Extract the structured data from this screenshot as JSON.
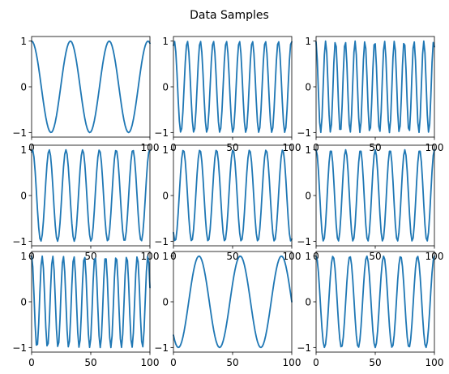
{
  "figure": {
    "title": "Data Samples",
    "line_color": "#1f77b4"
  },
  "chart_data": [
    {
      "type": "line",
      "samples": 100,
      "phase_at_0": 0.25,
      "cycles": 3.05,
      "amplitude": 1,
      "xlim": [
        0,
        100
      ],
      "ylim": [
        -1.1,
        1.1
      ],
      "xticks": [
        "0",
        "100"
      ],
      "yticks": [
        "-1",
        "0",
        "1"
      ],
      "grid": false,
      "legend": "none"
    },
    {
      "type": "line",
      "samples": 100,
      "phase_at_0": 0.18,
      "cycles": 9.1,
      "amplitude": 1,
      "xlim": [
        0,
        100
      ],
      "ylim": [
        -1.1,
        1.1
      ],
      "xticks": [
        "0",
        "50",
        "100"
      ],
      "yticks": [
        "-1",
        "0",
        "1"
      ],
      "grid": false,
      "legend": "none"
    },
    {
      "type": "line",
      "samples": 100,
      "phase_at_0": 0.28,
      "cycles": 12.05,
      "amplitude": 1,
      "xlim": [
        0,
        100
      ],
      "ylim": [
        -1.1,
        1.1
      ],
      "xticks": [
        "0",
        "50",
        "100"
      ],
      "yticks": [
        "-1",
        "0",
        "1"
      ],
      "grid": false,
      "legend": "none"
    },
    {
      "type": "line",
      "samples": 100,
      "phase_at_0": 0.2,
      "cycles": 7.07,
      "amplitude": 1,
      "xlim": [
        0,
        100
      ],
      "ylim": [
        -1.1,
        1.1
      ],
      "xticks": [
        "0",
        "50",
        "100"
      ],
      "yticks": [
        "-1",
        "0",
        "1"
      ],
      "grid": false,
      "legend": "none"
    },
    {
      "type": "line",
      "samples": 100,
      "phase_at_0": 0.65,
      "cycles": 7.15,
      "amplitude": 1,
      "xlim": [
        0,
        100
      ],
      "ylim": [
        -1.1,
        1.1
      ],
      "xticks": [
        "0",
        "50",
        "100"
      ],
      "yticks": [
        "-1",
        "0",
        "1"
      ],
      "grid": false,
      "legend": "none"
    },
    {
      "type": "line",
      "samples": 100,
      "phase_at_0": 0.25,
      "cycles": 8.0,
      "amplitude": 1,
      "xlim": [
        0,
        100
      ],
      "ylim": [
        -1.1,
        1.1
      ],
      "xticks": [
        "0",
        "50",
        "100"
      ],
      "yticks": [
        "-1",
        "0",
        "1"
      ],
      "grid": false,
      "legend": "none"
    },
    {
      "type": "line",
      "samples": 100,
      "phase_at_0": 0.25,
      "cycles": 11.2,
      "amplitude": 1,
      "xlim": [
        0,
        100
      ],
      "ylim": [
        -1.1,
        1.1
      ],
      "xticks": [
        "0",
        "50",
        "100"
      ],
      "yticks": [
        "-1",
        "0",
        "1"
      ],
      "grid": false,
      "legend": "none"
    },
    {
      "type": "line",
      "samples": 100,
      "phase_at_0": 0.63,
      "cycles": 2.87,
      "amplitude": 1,
      "xlim": [
        0,
        100
      ],
      "ylim": [
        -1.1,
        1.1
      ],
      "xticks": [
        "0",
        "50",
        "100"
      ],
      "yticks": [
        "-1",
        "0",
        "1"
      ],
      "grid": false,
      "legend": "none"
    },
    {
      "type": "line",
      "samples": 100,
      "phase_at_0": 0.25,
      "cycles": 7.0,
      "amplitude": 1,
      "xlim": [
        0,
        100
      ],
      "ylim": [
        -1.1,
        1.1
      ],
      "xticks": [
        "0",
        "50",
        "100"
      ],
      "yticks": [
        "-1",
        "0",
        "1"
      ],
      "grid": false,
      "legend": "none"
    }
  ]
}
